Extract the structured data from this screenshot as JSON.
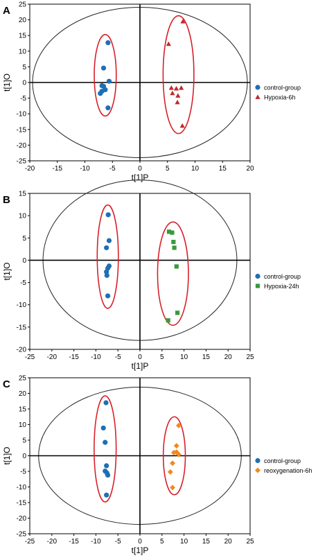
{
  "chart_data": [
    {
      "type": "scatter",
      "panel_label": "A",
      "xlabel": "t[1]P",
      "ylabel": "t[1]O",
      "xlim": [
        -20,
        20
      ],
      "ylim": [
        -25,
        25
      ],
      "xticks": [
        -20,
        -15,
        -10,
        -5,
        0,
        5,
        10,
        15,
        20
      ],
      "yticks": [
        -25,
        -20,
        -15,
        -10,
        -5,
        0,
        5,
        10,
        15,
        20,
        25
      ],
      "ellipse": {
        "cx": 0,
        "cy": 0,
        "rx": 19.5,
        "ry": 24
      },
      "legend_position": "right",
      "series": [
        {
          "name": "control-group",
          "marker": "circle",
          "color": "#1f6fb4",
          "points": [
            [
              -5.8,
              12.7
            ],
            [
              -6.6,
              4.6
            ],
            [
              -6.9,
              -1.0
            ],
            [
              -6.6,
              -1.2
            ],
            [
              -6.3,
              -2.3
            ],
            [
              -6.9,
              -2.8
            ],
            [
              -5.6,
              0.4
            ],
            [
              -7.2,
              -3.5
            ],
            [
              -5.8,
              -8.1
            ]
          ]
        },
        {
          "name": "Hypoxia-6h",
          "marker": "triangle",
          "color": "#c0282d",
          "points": [
            [
              7.8,
              19.5
            ],
            [
              5.2,
              12.3
            ],
            [
              5.7,
              -1.7
            ],
            [
              6.6,
              -1.9
            ],
            [
              7.5,
              -1.7
            ],
            [
              5.9,
              -3.4
            ],
            [
              6.9,
              -4.2
            ],
            [
              6.8,
              -6.3
            ],
            [
              7.7,
              -13.8
            ]
          ]
        }
      ],
      "clusters": [
        {
          "cx": -6.3,
          "cy": 2.3,
          "rx": 2.0,
          "ry": 13.0
        },
        {
          "cx": 7.0,
          "cy": 2.5,
          "rx": 2.8,
          "ry": 18.8
        }
      ]
    },
    {
      "type": "scatter",
      "panel_label": "B",
      "xlabel": "t[1]P",
      "ylabel": "t[1]O",
      "xlim": [
        -25,
        25
      ],
      "ylim": [
        -20,
        15
      ],
      "xticks": [
        -25,
        -20,
        -15,
        -10,
        -5,
        0,
        5,
        10,
        15,
        20,
        25
      ],
      "yticks": [
        -20,
        -15,
        -10,
        -5,
        0,
        5,
        10,
        15
      ],
      "ellipse": {
        "cx": 0,
        "cy": 0,
        "rx": 22,
        "ry": 18
      },
      "legend_position": "right",
      "series": [
        {
          "name": "control-group",
          "marker": "circle",
          "color": "#1f6fb4",
          "points": [
            [
              -7.2,
              10.2
            ],
            [
              -7.0,
              4.4
            ],
            [
              -7.6,
              2.8
            ],
            [
              -7.0,
              -1.3
            ],
            [
              -7.3,
              -1.8
            ],
            [
              -7.6,
              -2.6
            ],
            [
              -7.5,
              -3.4
            ],
            [
              -7.3,
              -8.0
            ]
          ]
        },
        {
          "name": "Hypoxia-24h",
          "marker": "square",
          "color": "#3a9a3a",
          "points": [
            [
              6.6,
              6.4
            ],
            [
              7.3,
              6.2
            ],
            [
              7.6,
              4.1
            ],
            [
              7.8,
              2.8
            ],
            [
              8.3,
              -1.4
            ],
            [
              8.5,
              -11.8
            ],
            [
              6.4,
              -13.5
            ]
          ]
        }
      ],
      "clusters": [
        {
          "cx": -7.3,
          "cy": 0.8,
          "rx": 2.4,
          "ry": 11.6
        },
        {
          "cx": 7.5,
          "cy": -3.0,
          "rx": 3.5,
          "ry": 11.6
        }
      ]
    },
    {
      "type": "scatter",
      "panel_label": "C",
      "xlabel": "t[1]P",
      "ylabel": "t[1]O",
      "xlim": [
        -25,
        25
      ],
      "ylim": [
        -25,
        25
      ],
      "xticks": [
        -25,
        -20,
        -15,
        -10,
        -5,
        0,
        5,
        10,
        15,
        20,
        25
      ],
      "yticks": [
        -25,
        -20,
        -15,
        -10,
        -5,
        0,
        5,
        10,
        15,
        20,
        25
      ],
      "ellipse": {
        "cx": 0,
        "cy": 0,
        "rx": 23,
        "ry": 22
      },
      "legend_position": "right",
      "series": [
        {
          "name": "control-group",
          "marker": "circle",
          "color": "#1f6fb4",
          "points": [
            [
              -7.7,
              17.0
            ],
            [
              -8.3,
              8.9
            ],
            [
              -7.9,
              4.3
            ],
            [
              -7.6,
              -3.2
            ],
            [
              -7.9,
              -4.9
            ],
            [
              -7.5,
              -5.5
            ],
            [
              -7.3,
              -6.2
            ],
            [
              -7.6,
              -12.6
            ]
          ]
        },
        {
          "name": "reoxygenation-6h",
          "marker": "diamond",
          "color": "#f08a1c",
          "points": [
            [
              8.8,
              9.7
            ],
            [
              8.3,
              3.2
            ],
            [
              7.7,
              1.0
            ],
            [
              8.3,
              1.2
            ],
            [
              8.8,
              0.4
            ],
            [
              7.4,
              -2.4
            ],
            [
              6.9,
              -5.2
            ],
            [
              7.4,
              -10.2
            ]
          ]
        }
      ],
      "clusters": [
        {
          "cx": -7.9,
          "cy": 2.2,
          "rx": 2.5,
          "ry": 17.0
        },
        {
          "cx": 7.8,
          "cy": 0.0,
          "rx": 2.5,
          "ry": 12.5
        }
      ]
    }
  ]
}
